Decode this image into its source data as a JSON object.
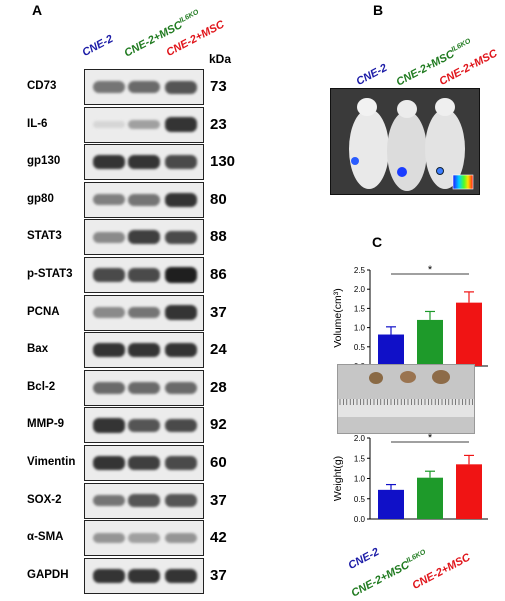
{
  "panels": {
    "a": "A",
    "b": "B",
    "c": "C"
  },
  "groups": [
    {
      "label": "CNE-2",
      "sup": "",
      "color": "#1a1aa6"
    },
    {
      "label": "CNE-2+MSC",
      "sup": "IL6KO",
      "color": "#1f7a1f"
    },
    {
      "label": "CNE-2+MSC",
      "sup": "",
      "color": "#e0141a"
    }
  ],
  "kda_header": "kDa",
  "blots": [
    {
      "protein": "CD73",
      "kda": "73",
      "intensities": [
        0.55,
        0.6,
        0.7
      ]
    },
    {
      "protein": "IL-6",
      "kda": "23",
      "intensities": [
        0.1,
        0.35,
        0.85
      ]
    },
    {
      "protein": "gp130",
      "kda": "130",
      "intensities": [
        0.85,
        0.85,
        0.75
      ]
    },
    {
      "protein": "gp80",
      "kda": "80",
      "intensities": [
        0.5,
        0.55,
        0.85
      ]
    },
    {
      "protein": "STAT3",
      "kda": "88",
      "intensities": [
        0.45,
        0.8,
        0.75
      ]
    },
    {
      "protein": "p-STAT3",
      "kda": "86",
      "intensities": [
        0.75,
        0.75,
        0.95
      ]
    },
    {
      "protein": "PCNA",
      "kda": "37",
      "intensities": [
        0.45,
        0.55,
        0.85
      ]
    },
    {
      "protein": "Bax",
      "kda": "24",
      "intensities": [
        0.85,
        0.85,
        0.85
      ]
    },
    {
      "protein": "Bcl-2",
      "kda": "28",
      "intensities": [
        0.6,
        0.6,
        0.6
      ]
    },
    {
      "protein": "MMP-9",
      "kda": "92",
      "intensities": [
        0.85,
        0.7,
        0.75
      ]
    },
    {
      "protein": "Vimentin",
      "kda": "60",
      "intensities": [
        0.85,
        0.8,
        0.75
      ]
    },
    {
      "protein": "SOX-2",
      "kda": "37",
      "intensities": [
        0.55,
        0.7,
        0.7
      ]
    },
    {
      "protein": "α-SMA",
      "kda": "42",
      "intensities": [
        0.4,
        0.35,
        0.4
      ]
    },
    {
      "protein": "GAPDH",
      "kda": "37",
      "intensities": [
        0.85,
        0.85,
        0.85
      ]
    }
  ],
  "chart_data": [
    {
      "type": "bar",
      "categories": [
        "CNE-2",
        "CNE-2+MSCIL6KO",
        "CNE-2+MSC"
      ],
      "values": [
        0.82,
        1.2,
        1.65
      ],
      "errors": [
        0.2,
        0.22,
        0.28
      ],
      "colors": [
        "#1010c8",
        "#1e9a2a",
        "#f01414"
      ],
      "ylabel": "Volume(cm³)",
      "ylim": [
        0,
        2.5
      ],
      "yticks": [
        "0.0",
        "0.5",
        "1.0",
        "1.5",
        "2.0",
        "2.5"
      ],
      "significance": "*"
    },
    {
      "type": "bar",
      "categories": [
        "CNE-2",
        "CNE-2+MSCIL6KO",
        "CNE-2+MSC"
      ],
      "values": [
        0.72,
        1.02,
        1.35
      ],
      "errors": [
        0.13,
        0.16,
        0.22
      ],
      "colors": [
        "#1010c8",
        "#1e9a2a",
        "#f01414"
      ],
      "ylabel": "Weight(g)",
      "ylim": [
        0,
        2.0
      ],
      "yticks": [
        "0.0",
        "0.5",
        "1.0",
        "1.5",
        "2.0"
      ],
      "significance": "*"
    }
  ]
}
